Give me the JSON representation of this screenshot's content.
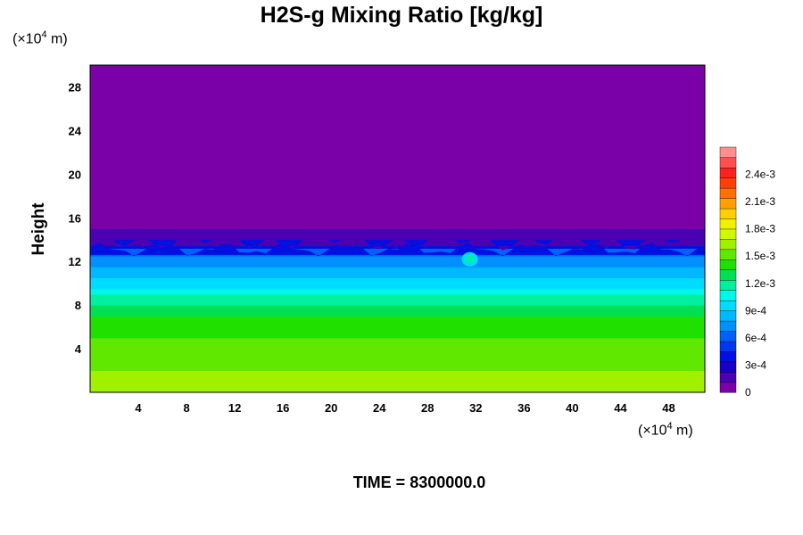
{
  "chart_data": {
    "type": "heatmap",
    "title": "H2S-g Mixing Ratio [kg/kg]",
    "ylabel": "Height",
    "xlabel": "",
    "x_unit_label": "(×10⁴ m)",
    "y_unit_label": "(×10⁴ m)",
    "xlim": [
      0,
      51
    ],
    "ylim": [
      0,
      30
    ],
    "x_ticks": [
      4,
      8,
      12,
      16,
      20,
      24,
      28,
      32,
      36,
      40,
      44,
      48
    ],
    "y_ticks": [
      4,
      8,
      12,
      16,
      20,
      24,
      28
    ],
    "colorbar": {
      "range": [
        0,
        0.0027
      ],
      "tick_values": [
        0,
        0.0003,
        0.0006,
        0.0009,
        0.0012,
        0.0015,
        0.0018,
        0.0021,
        0.0024
      ],
      "tick_labels": [
        "0",
        "3e-4",
        "6e-4",
        "9e-4",
        "1.2e-3",
        "1.5e-3",
        "1.8e-3",
        "2.1e-3",
        "2.4e-3"
      ],
      "colors": [
        "#7a00a8",
        "#4b00b4",
        "#1800c8",
        "#0010e0",
        "#0038f0",
        "#0060f8",
        "#0090ff",
        "#00b8ff",
        "#00dcff",
        "#00f8e8",
        "#00f0a0",
        "#00e050",
        "#20e000",
        "#60e800",
        "#a0f000",
        "#d0f800",
        "#f0f000",
        "#ffd000",
        "#ffa000",
        "#ff7000",
        "#ff4000",
        "#ff2020",
        "#ff5050",
        "#ff9090"
      ]
    },
    "profile": [
      {
        "height": 0,
        "value": 0.00158
      },
      {
        "height": 1,
        "value": 0.00158
      },
      {
        "height": 2,
        "value": 0.00152
      },
      {
        "height": 4,
        "value": 0.00148
      },
      {
        "height": 5,
        "value": 0.00145
      },
      {
        "height": 6,
        "value": 0.00138
      },
      {
        "height": 7,
        "value": 0.0013
      },
      {
        "height": 8,
        "value": 0.00118
      },
      {
        "height": 9,
        "value": 0.00105
      },
      {
        "height": 9.5,
        "value": 0.00098
      },
      {
        "height": 10,
        "value": 0.0009
      },
      {
        "height": 10.5,
        "value": 0.0008
      },
      {
        "height": 11.5,
        "value": 0.0007
      },
      {
        "height": 12.5,
        "value": 0.0006
      },
      {
        "height": 13.2,
        "value": 0.00035
      },
      {
        "height": 14,
        "value": 0.00015
      },
      {
        "height": 15,
        "value": 0
      },
      {
        "height": 30,
        "value": 0
      }
    ],
    "features": [
      {
        "x": 31.5,
        "height": 12.2,
        "value": 0.0012
      }
    ],
    "annotation": "TIME = 8300000.0"
  },
  "page": {
    "time_label": "TIME = 8300000.0"
  }
}
